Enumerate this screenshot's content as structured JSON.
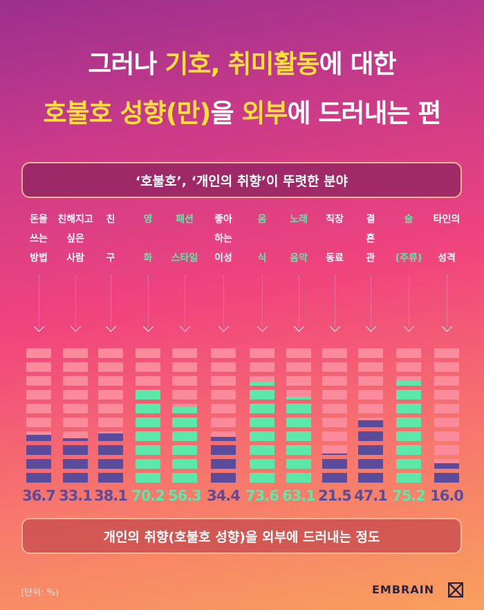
{
  "title": {
    "line1_a": "그러나 ",
    "line1_b": "기호, 취미활동",
    "line1_c": "에 대한",
    "line2_a": "호불호 성향(만)",
    "line2_b": "을 ",
    "line2_c": "외부",
    "line2_d": "에 드러내는 편"
  },
  "top_box_label": "‘호불호’, ‘개인의 취향’이 뚜렷한 분야",
  "bottom_box_label": "개인의 취향(호불호 성향)을 외부에 드러내는 정도",
  "unit_note": "(단위: %)",
  "brand": "EMBRAIN",
  "colors": {
    "purple_fill": "#5b4b9b",
    "green_fill": "#5ce8a8",
    "empty_segment": "#fb8a9a",
    "green_label": "#5ce8a8"
  },
  "chart_data": {
    "type": "bar",
    "categories": [
      "돈을 쓰는 방법",
      "친해지고 싶은 사람",
      "친구",
      "영화",
      "패션 스타일",
      "좋아하는 이성",
      "음식",
      "노래 음악",
      "직장 동료",
      "결혼관",
      "술 (주류)",
      "타인의 성격"
    ],
    "labels": [
      [
        "돈을",
        "쓰는",
        "방법"
      ],
      [
        "친해지고",
        "싶은",
        "사람"
      ],
      [
        "친",
        "",
        "구"
      ],
      [
        "영",
        "",
        "화"
      ],
      [
        "패션",
        "",
        "스타일"
      ],
      [
        "좋아",
        "하는",
        "이성"
      ],
      [
        "음",
        "",
        "식"
      ],
      [
        "노래",
        "",
        "음악"
      ],
      [
        "직장",
        "",
        "동료"
      ],
      [
        "결",
        "혼",
        "관"
      ],
      [
        "술",
        "",
        "(주류)"
      ],
      [
        "타인의",
        "",
        "성격"
      ]
    ],
    "values": [
      36.7,
      33.1,
      38.1,
      70.2,
      56.3,
      34.4,
      73.6,
      63.1,
      21.5,
      47.1,
      75.2,
      16.0
    ],
    "value_labels": [
      "36.7",
      "33.1",
      "38.1",
      "70.2",
      "56.3",
      "34.4",
      "73.6",
      "63.1",
      "21.5",
      "47.1",
      "75.2",
      "16.0"
    ],
    "highlight": [
      false,
      false,
      false,
      true,
      true,
      false,
      true,
      true,
      false,
      false,
      true,
      false
    ],
    "segments": 10,
    "ylim": [
      0,
      100
    ]
  }
}
